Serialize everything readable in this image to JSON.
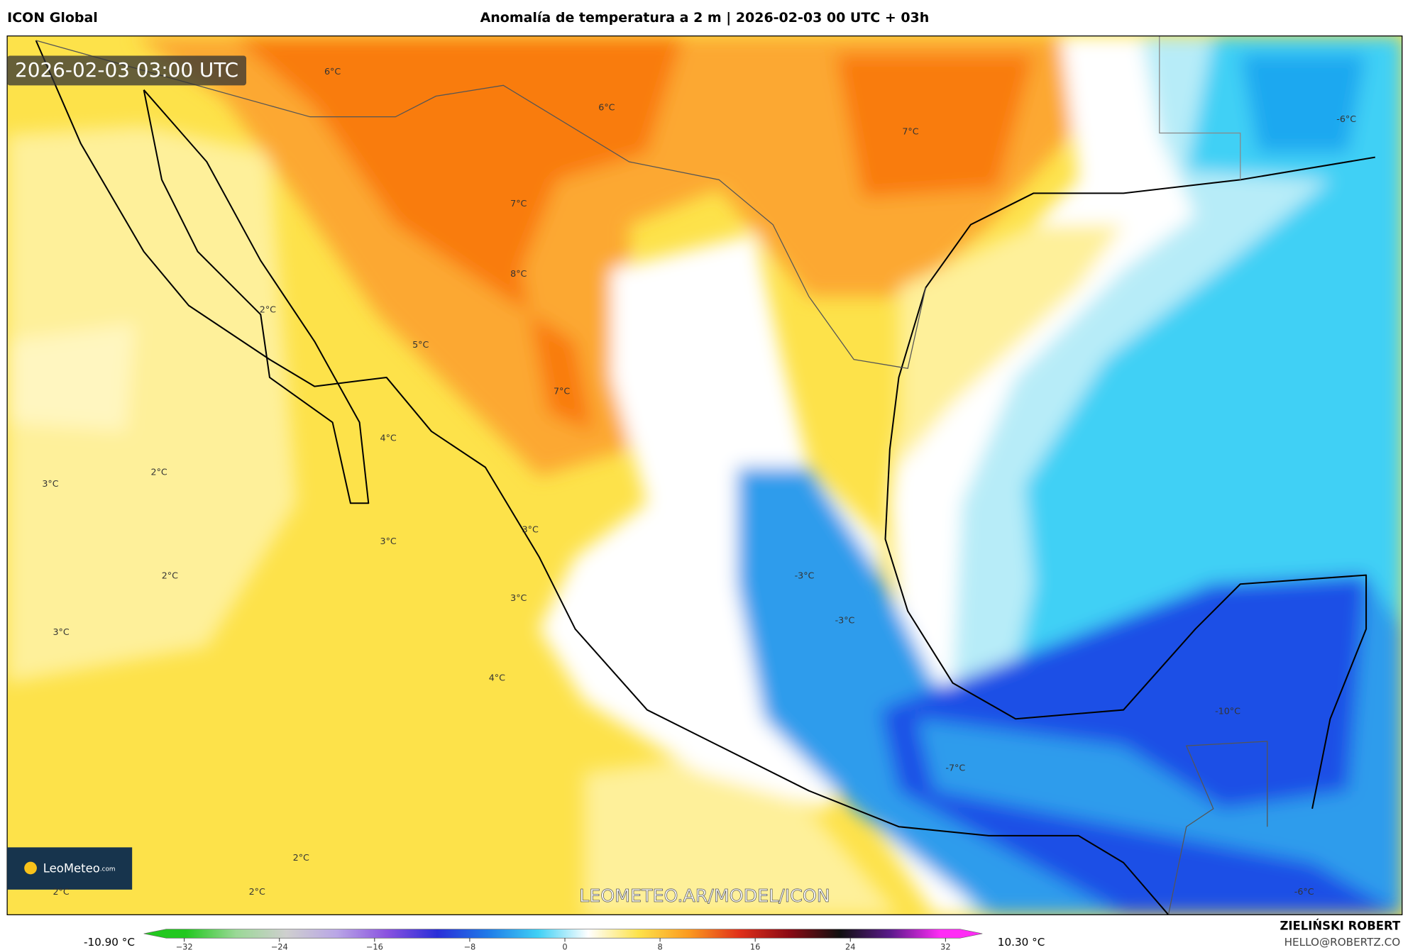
{
  "header": {
    "model": "ICON Global",
    "title": "Anomalía de temperatura a 2 m | 2026-02-03 00 UTC + 03h"
  },
  "map": {
    "valid_time": "2026-02-03 03:00 UTC",
    "labels": [
      "6°C",
      "6°C",
      "7°C",
      "-6°C",
      "7°C",
      "8°C",
      "2°C",
      "5°C",
      "7°C",
      "4°C",
      "2°C",
      "3°C",
      "3°C",
      "3°C",
      "2°C",
      "-3°C",
      "3°C",
      "-3°C",
      "3°C",
      "4°C",
      "-10°C",
      "-7°C",
      "2°C",
      "2°C",
      "2°C",
      "-6°C"
    ],
    "watermark": "LEOMETEO.AR/MODEL/ICON",
    "logo": {
      "name": "LeoMeteo",
      "domain": ".com"
    }
  },
  "colorbar": {
    "min_label": "-10.90 °C",
    "max_label": "10.30 °C",
    "xlim": [
      -32,
      32
    ],
    "ticks": [
      {
        "value": -32,
        "label": "−32"
      },
      {
        "value": -24,
        "label": "−24"
      },
      {
        "value": -16,
        "label": "−16"
      },
      {
        "value": -8,
        "label": "−8"
      },
      0,
      8,
      16,
      24,
      32
    ],
    "colors": [
      "#22c81f",
      "#9ad896",
      "#cfcfcf",
      "#b9a6e6",
      "#8a52e0",
      "#2a2ed8",
      "#1f7ae8",
      "#3fd0f5",
      "#ffffff",
      "#fde24a",
      "#fb9a20",
      "#e0301a",
      "#8a0a14",
      "#101010",
      "#5a1a8a",
      "#ff2cf5"
    ]
  },
  "credit": {
    "author": "ZIELIŃSKI ROBERT",
    "email": "HELLO@ROBERTZ.CO"
  }
}
